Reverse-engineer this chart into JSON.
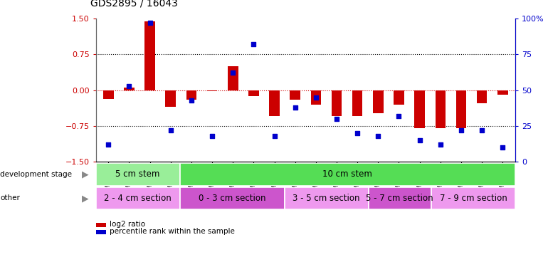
{
  "title": "GDS2895 / 16043",
  "samples": [
    "GSM35570",
    "GSM35571",
    "GSM35721",
    "GSM35725",
    "GSM35565",
    "GSM35567",
    "GSM35568",
    "GSM35569",
    "GSM35726",
    "GSM35727",
    "GSM35728",
    "GSM35729",
    "GSM35978",
    "GSM36004",
    "GSM36011",
    "GSM36012",
    "GSM36013",
    "GSM36014",
    "GSM36015",
    "GSM36016"
  ],
  "log2_ratio": [
    -0.18,
    0.05,
    1.45,
    -0.35,
    -0.2,
    -0.02,
    0.5,
    -0.12,
    -0.55,
    -0.2,
    -0.3,
    -0.55,
    -0.55,
    -0.48,
    -0.3,
    -0.8,
    -0.8,
    -0.8,
    -0.28,
    -0.1
  ],
  "percentile": [
    12,
    53,
    97,
    22,
    43,
    18,
    62,
    82,
    18,
    38,
    45,
    30,
    20,
    18,
    32,
    15,
    12,
    22,
    22,
    10
  ],
  "ylim_left": [
    -1.5,
    1.5
  ],
  "ylim_right": [
    0,
    100
  ],
  "hline_dotted": [
    0.75,
    -0.75
  ],
  "bar_color": "#cc0000",
  "dot_color": "#0000cc",
  "dev_stage_groups": [
    {
      "label": "5 cm stem",
      "start": 0,
      "end": 4,
      "color": "#99ee99"
    },
    {
      "label": "10 cm stem",
      "start": 4,
      "end": 20,
      "color": "#55dd55"
    }
  ],
  "other_groups": [
    {
      "label": "2 - 4 cm section",
      "start": 0,
      "end": 4,
      "color": "#ee99ee"
    },
    {
      "label": "0 - 3 cm section",
      "start": 4,
      "end": 9,
      "color": "#cc55cc"
    },
    {
      "label": "3 - 5 cm section",
      "start": 9,
      "end": 13,
      "color": "#ee99ee"
    },
    {
      "label": "5 - 7 cm section",
      "start": 13,
      "end": 16,
      "color": "#cc55cc"
    },
    {
      "label": "7 - 9 cm section",
      "start": 16,
      "end": 20,
      "color": "#ee99ee"
    }
  ],
  "legend_items": [
    {
      "label": "log2 ratio",
      "color": "#cc0000"
    },
    {
      "label": "percentile rank within the sample",
      "color": "#0000cc"
    }
  ],
  "dev_stage_label": "development stage",
  "other_label": "other",
  "tick_color_left": "#cc0000",
  "tick_color_right": "#0000cc",
  "background_color": "#ffffff",
  "bar_width": 0.5
}
